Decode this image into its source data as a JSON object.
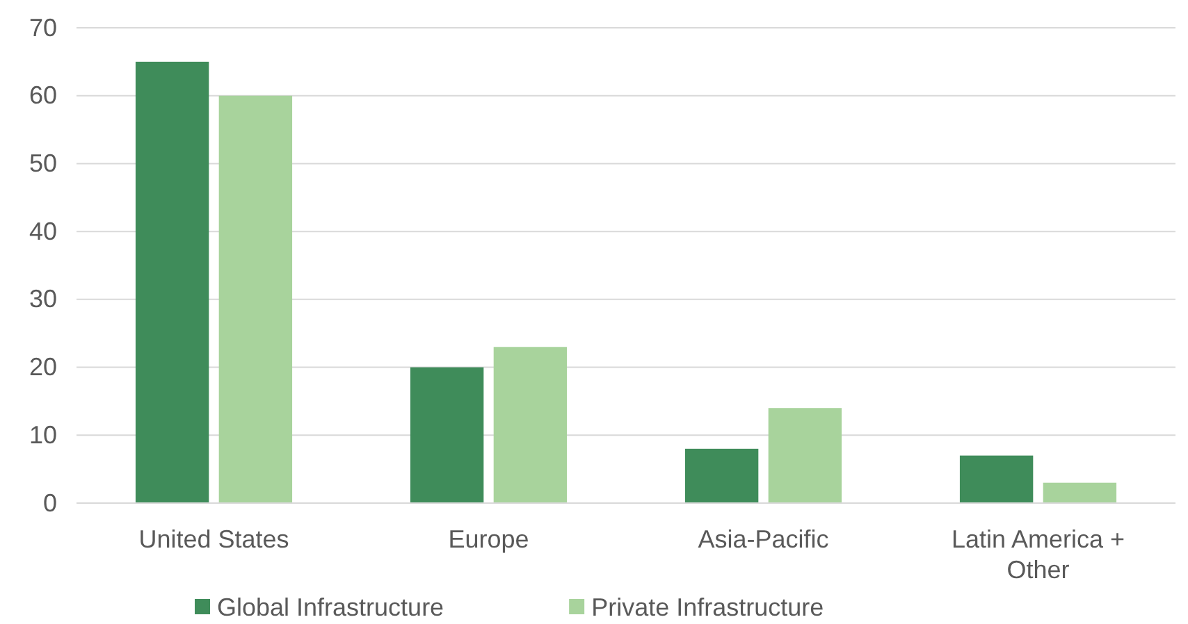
{
  "chart_data": {
    "type": "bar",
    "categories": [
      "United States",
      "Europe",
      "Asia-Pacific",
      "Latin America + Other"
    ],
    "series": [
      {
        "name": "Global Infrastructure",
        "color": "#3f8c5a",
        "values": [
          65,
          20,
          8,
          7
        ]
      },
      {
        "name": "Private Infrastructure",
        "color": "#a8d39c",
        "values": [
          60,
          23,
          14,
          3
        ]
      }
    ],
    "ylim": [
      0,
      70
    ],
    "yticks": [
      0,
      10,
      20,
      30,
      40,
      50,
      60,
      70
    ],
    "grid": "y",
    "legend": "bottom"
  }
}
